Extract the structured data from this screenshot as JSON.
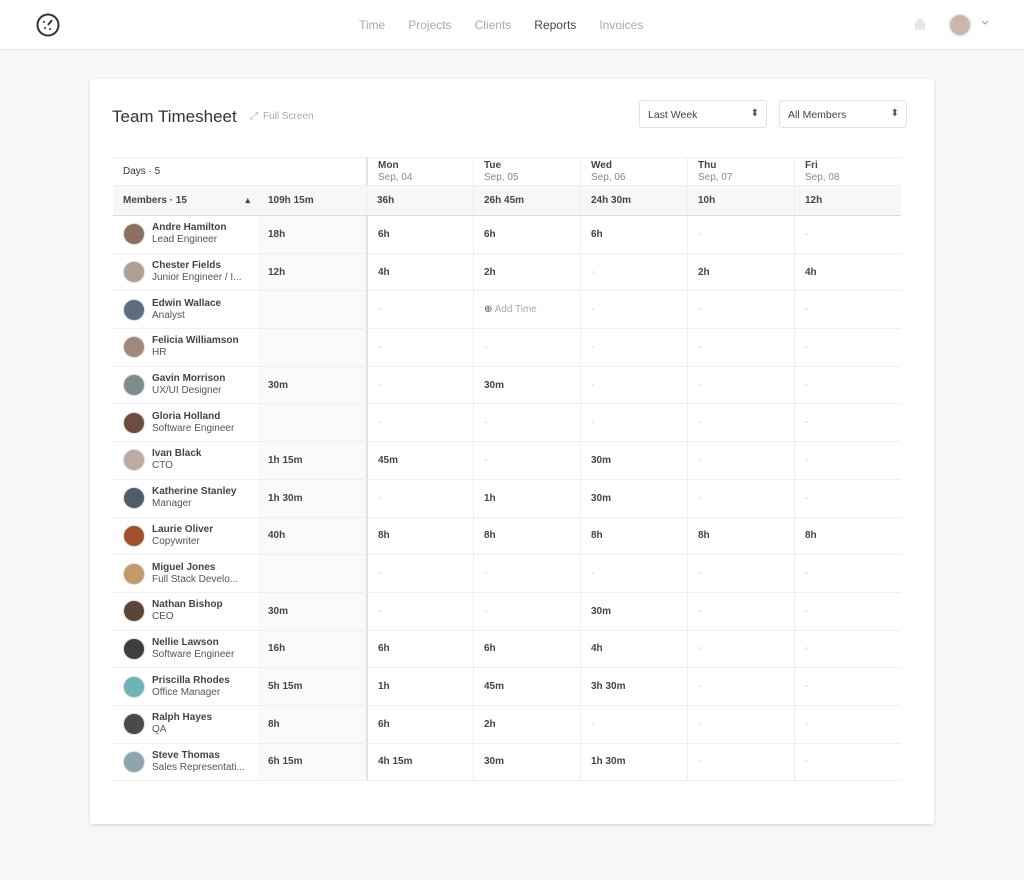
{
  "nav": {
    "links": [
      "Time",
      "Projects",
      "Clients",
      "Reports",
      "Invoices"
    ],
    "active": 3
  },
  "header": {
    "title": "Team Timesheet",
    "full_screen": "Full Screen",
    "period": "Last Week",
    "members_filter": "All Members"
  },
  "table": {
    "days_label": "Days · 5",
    "members_label": "Members · 15",
    "total": "109h 15m",
    "days": [
      {
        "name": "Mon",
        "date": "Sep, 04",
        "total": "36h"
      },
      {
        "name": "Tue",
        "date": "Sep, 05",
        "total": "26h 45m"
      },
      {
        "name": "Wed",
        "date": "Sep, 06",
        "total": "24h 30m"
      },
      {
        "name": "Thu",
        "date": "Sep, 07",
        "total": "10h"
      },
      {
        "name": "Fri",
        "date": "Sep, 08",
        "total": "12h"
      }
    ],
    "rows": [
      {
        "name": "Andre Hamilton",
        "role": "Lead Engineer",
        "total": "18h",
        "cells": [
          "6h",
          "6h",
          "6h",
          "-",
          "-"
        ]
      },
      {
        "name": "Chester Fields",
        "role": "Junior Engineer / I...",
        "total": "12h",
        "cells": [
          "4h",
          "2h",
          "-",
          "2h",
          "4h"
        ]
      },
      {
        "name": "Edwin Wallace",
        "role": "Analyst",
        "total": null,
        "cells": [
          "-",
          "Add Time",
          "-",
          "-",
          "-"
        ]
      },
      {
        "name": "Felicia Williamson",
        "role": "HR",
        "total": null,
        "cells": [
          "-",
          "-",
          "-",
          "-",
          "-"
        ]
      },
      {
        "name": "Gavin Morrison",
        "role": "UX/UI Designer",
        "total": "30m",
        "cells": [
          "-",
          "30m",
          "-",
          "-",
          "-"
        ]
      },
      {
        "name": "Gloria Holland",
        "role": "Software Engineer",
        "total": null,
        "cells": [
          "-",
          "-",
          "-",
          "-",
          "-"
        ]
      },
      {
        "name": "Ivan Black",
        "role": "CTO",
        "total": "1h 15m",
        "cells": [
          "45m",
          "-",
          "30m",
          "-",
          "-"
        ]
      },
      {
        "name": "Katherine Stanley",
        "role": "Manager",
        "total": "1h 30m",
        "cells": [
          "-",
          "1h",
          "30m",
          "-",
          "-"
        ]
      },
      {
        "name": "Laurie Oliver",
        "role": "Copywriter",
        "total": "40h",
        "cells": [
          "8h",
          "8h",
          "8h",
          "8h",
          "8h"
        ]
      },
      {
        "name": "Miguel Jones",
        "role": "Full Stack Develo...",
        "total": null,
        "cells": [
          "-",
          "-",
          "-",
          "-",
          "-"
        ]
      },
      {
        "name": "Nathan Bishop",
        "role": "CEO",
        "total": "30m",
        "cells": [
          "-",
          "-",
          "30m",
          "-",
          "-"
        ]
      },
      {
        "name": "Nellie Lawson",
        "role": "Software Engineer",
        "total": "16h",
        "cells": [
          "6h",
          "6h",
          "4h",
          "-",
          "-"
        ]
      },
      {
        "name": "Priscilla Rhodes",
        "role": "Office Manager",
        "total": "5h 15m",
        "cells": [
          "1h",
          "45m",
          "3h 30m",
          "-",
          "-"
        ]
      },
      {
        "name": "Ralph Hayes",
        "role": "QA",
        "total": "8h",
        "cells": [
          "6h",
          "2h",
          "-",
          "-",
          "-"
        ]
      },
      {
        "name": "Steve Thomas",
        "role": "Sales Representati...",
        "total": "6h 15m",
        "cells": [
          "4h 15m",
          "30m",
          "1h 30m",
          "-",
          "-"
        ]
      }
    ]
  }
}
